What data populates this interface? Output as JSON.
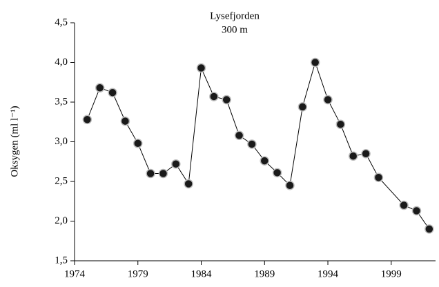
{
  "chart_data": {
    "type": "line",
    "title": "Lysefjorden",
    "subtitle": "300 m",
    "ylabel": "Oksygen (ml l⁻¹)",
    "x": [
      1975,
      1976,
      1977,
      1978,
      1979,
      1980,
      1981,
      1982,
      1983,
      1984,
      1985,
      1986,
      1987,
      1988,
      1989,
      1990,
      1991,
      1992,
      1993,
      1994,
      1995,
      1996,
      1997,
      1998,
      2000,
      2001,
      2002
    ],
    "series": [
      {
        "name": "Oksygen",
        "color": "#000000",
        "values": [
          3.28,
          3.68,
          3.62,
          3.26,
          2.98,
          2.6,
          2.6,
          2.72,
          2.47,
          3.93,
          3.57,
          3.53,
          3.08,
          2.97,
          2.76,
          2.61,
          2.45,
          3.44,
          4.0,
          3.53,
          3.22,
          2.82,
          2.85,
          2.55,
          2.2,
          2.13,
          1.9
        ]
      }
    ],
    "xlim": [
      1974,
      2002.5
    ],
    "xticks": [
      1974,
      1979,
      1984,
      1989,
      1994,
      1999
    ],
    "ylim": [
      1.5,
      4.5
    ],
    "yticks": [
      {
        "value": 1.5,
        "label": "1,5"
      },
      {
        "value": 2.0,
        "label": "2,0"
      },
      {
        "value": 2.5,
        "label": "2,5"
      },
      {
        "value": 3.0,
        "label": "3,0"
      },
      {
        "value": 3.5,
        "label": "3,5"
      },
      {
        "value": 4.0,
        "label": "4,0"
      },
      {
        "value": 4.5,
        "label": "4,5"
      }
    ]
  }
}
